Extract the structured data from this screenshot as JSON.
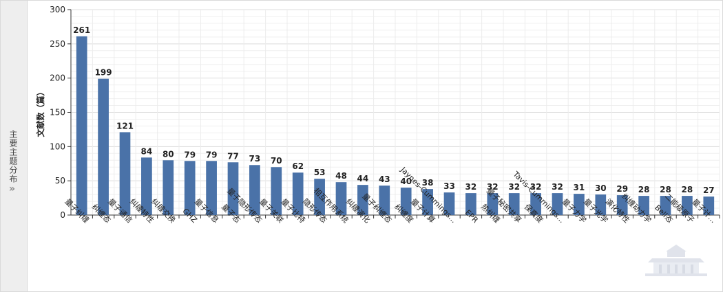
{
  "side_panel": {
    "label": "主要主题分布",
    "chevron": "»"
  },
  "colors": {
    "bar": "#4a72a8",
    "grid": "#e6e6e6",
    "axis": "#333333",
    "text": "#222222"
  },
  "chart_data": {
    "type": "bar",
    "ylabel": "文献数（篇）",
    "ylim": [
      0,
      300
    ],
    "yticks": [
      0,
      50,
      100,
      150,
      200,
      250,
      300
    ],
    "grid": true,
    "categories": [
      "量子纠缠",
      "纠缠态",
      "量子通信",
      "纠缠特性",
      "纠缠交换",
      "GHZ",
      "量子信息",
      "量子态",
      "量子隐形传态",
      "量子关联",
      "量子比特",
      "隐形传态",
      "相互作用系统",
      "纠缠演化",
      "量子纠缠态",
      "纠缠度",
      "量子计算",
      "Jaynes-Cummings...",
      "EPR",
      "热纠缠",
      "量子秘密共享",
      "保真度",
      "Tavis-Cummings...",
      "量子力学",
      "量子光学",
      "演化特性",
      "纠缠动力学",
      "Bell态",
      "二能级原子",
      "量子计..."
    ],
    "values": [
      261,
      199,
      121,
      84,
      80,
      79,
      79,
      77,
      73,
      70,
      62,
      53,
      48,
      44,
      43,
      40,
      38,
      33,
      32,
      32,
      32,
      32,
      32,
      31,
      30,
      29,
      28,
      28,
      28,
      27
    ]
  }
}
